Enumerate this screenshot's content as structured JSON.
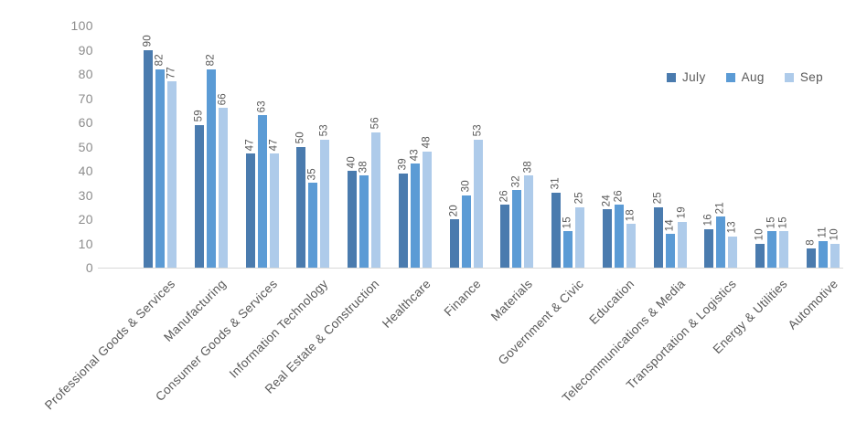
{
  "chart_data": {
    "type": "bar",
    "title": "",
    "categories": [
      "Professional Goods & Services",
      "Manufacturing",
      "Consumer Goods & Services",
      "Information Technology",
      "Real Estate & Construction",
      "Healthcare",
      "Finance",
      "Materials",
      "Government & Civic",
      "Education",
      "Telecommunications & Media",
      "Transportation & Logistics",
      "Energy & Utilities",
      "Automotive"
    ],
    "series": [
      {
        "name": "July",
        "color": "#4A7BAE",
        "values": [
          90,
          59,
          47,
          50,
          40,
          39,
          20,
          26,
          31,
          24,
          25,
          16,
          10,
          8
        ]
      },
      {
        "name": "Aug",
        "color": "#5B9BD5",
        "values": [
          82,
          82,
          63,
          35,
          38,
          43,
          30,
          32,
          15,
          26,
          14,
          21,
          15,
          11
        ]
      },
      {
        "name": "Sep",
        "color": "#AECBEA",
        "values": [
          77,
          66,
          47,
          53,
          56,
          48,
          53,
          38,
          25,
          18,
          19,
          13,
          15,
          10
        ]
      }
    ],
    "ylim": [
      0,
      100
    ],
    "yticks": [
      0,
      10,
      20,
      30,
      40,
      50,
      60,
      70,
      80,
      90,
      100
    ],
    "grid": false,
    "legend_position": "top-right",
    "data_labels_shown": true,
    "data_label_rotation": "vertical",
    "category_label_rotation": 45,
    "colors": {
      "axis_line": "#D8D8D8",
      "tick_label": "#8C8C8C",
      "data_label": "#595959",
      "category_label": "#595959",
      "legend_label": "#595959",
      "background": "#FFFFFF"
    }
  }
}
